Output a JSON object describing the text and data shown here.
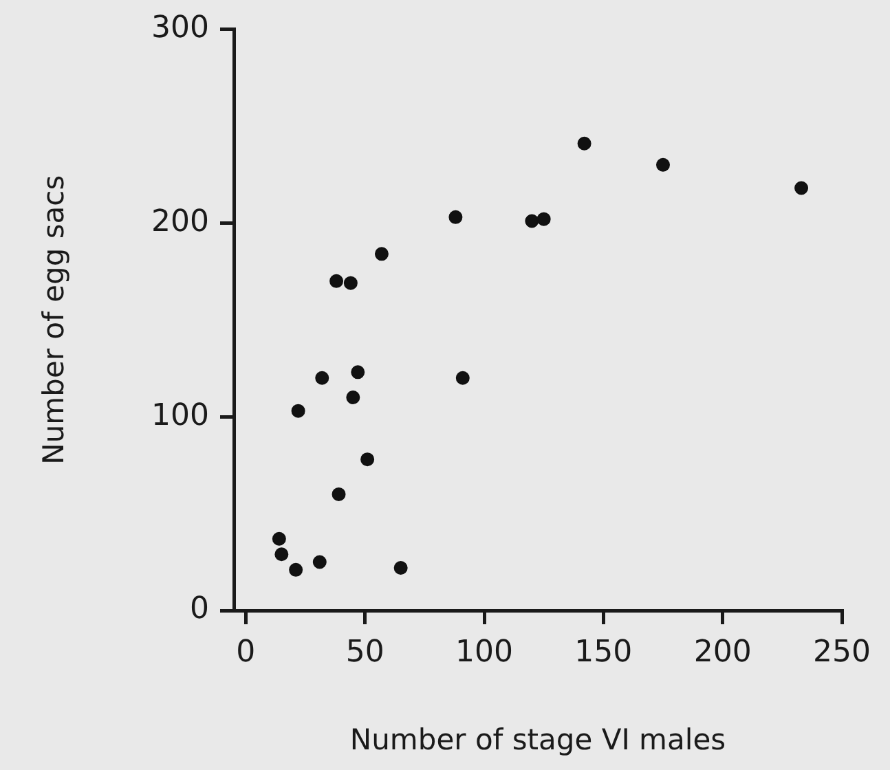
{
  "chart_data": {
    "type": "scatter",
    "xlabel": "Number of stage VI males",
    "ylabel": "Number of egg sacs",
    "x": [
      14,
      15,
      21,
      31,
      65,
      39,
      51,
      22,
      32,
      45,
      47,
      91,
      38,
      44,
      57,
      88,
      120,
      125,
      142,
      175,
      233
    ],
    "values": [
      37,
      29,
      21,
      25,
      22,
      60,
      78,
      103,
      120,
      110,
      123,
      120,
      170,
      169,
      184,
      203,
      201,
      202,
      241,
      230,
      218
    ],
    "color": "#111111",
    "marker": "circle",
    "xlim": [
      -5,
      250
    ],
    "ylim": [
      0,
      300
    ],
    "xticks": [
      0,
      50,
      100,
      150,
      200,
      250
    ],
    "yticks": [
      0,
      100,
      200,
      300
    ]
  }
}
